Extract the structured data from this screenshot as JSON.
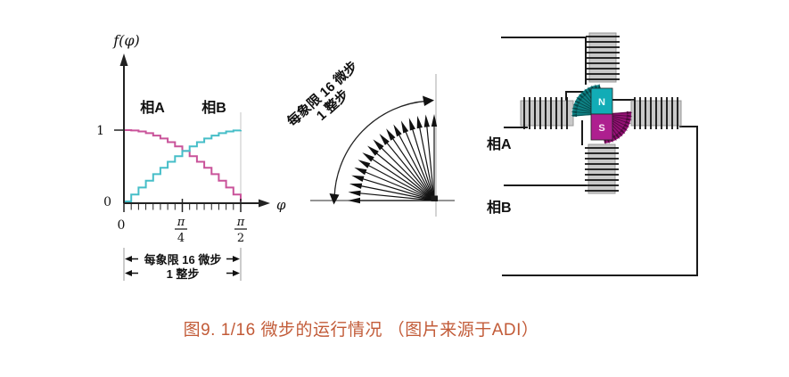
{
  "figure": {
    "caption_text": "图9. 1/16 微步的运行情况 （图片来源于ADI）",
    "caption_color": "#C25B38"
  },
  "waveform_chart": {
    "y_axis_label": "f(φ)",
    "x_axis_arrow_label": "φ",
    "phase_a_label": "相A",
    "phase_b_label": "相B",
    "y_tick_top": "1",
    "y_tick_bottom": "0",
    "x_tick_zero": "0",
    "pi_symbol": "π",
    "quarter_denominator": "4",
    "half_denominator": "2",
    "bracket_line1": "每象限 16 微步",
    "bracket_line2": "1 整步",
    "phase_a_color": "#C9539A",
    "phase_b_color": "#46BEC8"
  },
  "chart_data": {
    "type": "line",
    "title": "1/16 microstepping phase currents over one quadrant",
    "xlabel": "φ",
    "ylabel": "f(φ)",
    "x_tick_labels": [
      "0",
      "π/4",
      "π/2"
    ],
    "ylim": [
      0,
      1
    ],
    "microsteps_per_quadrant": 16,
    "series": [
      {
        "name": "相A",
        "shape": "stepped cosine",
        "values": [
          1,
          0.995,
          0.981,
          0.957,
          0.924,
          0.882,
          0.831,
          0.773,
          0.707,
          0.634,
          0.556,
          0.471,
          0.383,
          0.29,
          0.195,
          0.098,
          0
        ]
      },
      {
        "name": "相B",
        "shape": "stepped sine",
        "values": [
          0,
          0.098,
          0.195,
          0.29,
          0.383,
          0.471,
          0.556,
          0.634,
          0.707,
          0.773,
          0.831,
          0.882,
          0.924,
          0.957,
          0.981,
          0.995,
          1
        ]
      }
    ]
  },
  "vector_fan": {
    "label_line1": "每象限 16 微步",
    "label_line2": "1 整步",
    "arrow_count": 17,
    "sweep_degrees": 90
  },
  "motor_diagram": {
    "phase_a_label": "相A",
    "phase_b_label": "相B",
    "rotor_north_label": "N",
    "rotor_south_label": "S",
    "rotor_north_color": "#12ACB6",
    "rotor_south_color": "#AE1F8F",
    "north_fan_color": "#0E8285",
    "south_fan_color": "#951176",
    "north_fan_stripe_color": "#06494B",
    "south_fan_stripe_color": "#4F0A3E",
    "coil_body_color": "#C9C9C9"
  }
}
